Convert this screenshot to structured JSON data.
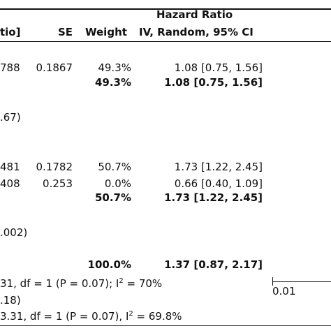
{
  "header": {
    "group_title": "Hazard Ratio",
    "col_ratio": "tio]",
    "col_se": "SE",
    "col_weight": "Weight",
    "col_ci": "IV, Random, 95% CI"
  },
  "rows": [
    {
      "id": "788",
      "se": "0.1867",
      "weight": "49.3%",
      "ci": "1.08 [0.75, 1.56]"
    },
    {
      "weight": "49.3%",
      "ci": "1.08 [0.75, 1.56]",
      "bold": true
    },
    {
      "note": ".67)"
    },
    {
      "id": "481",
      "se": "0.1782",
      "weight": "50.7%",
      "ci": "1.73 [1.22, 2.45]"
    },
    {
      "id": "408",
      "se": "0.253",
      "weight": "0.0%",
      "ci": "0.66 [0.40, 1.09]"
    },
    {
      "weight": "50.7%",
      "ci": "1.73 [1.22, 2.45]",
      "bold": true
    },
    {
      "note": ".002)"
    },
    {
      "weight": "100.0%",
      "ci": "1.37 [0.87, 2.17]",
      "bold": true
    }
  ],
  "footer": {
    "line1_pre": "31, df = 1 (P = 0.07); I",
    "line1_sup": "2",
    "line1_post": " = 70%",
    "line2": ".18)",
    "line3_pre": "3.31, df = 1 (P = 0.07), I",
    "line3_sup": "2",
    "line3_post": " = 69.8%"
  },
  "axis": {
    "tick_label": "0.01"
  }
}
